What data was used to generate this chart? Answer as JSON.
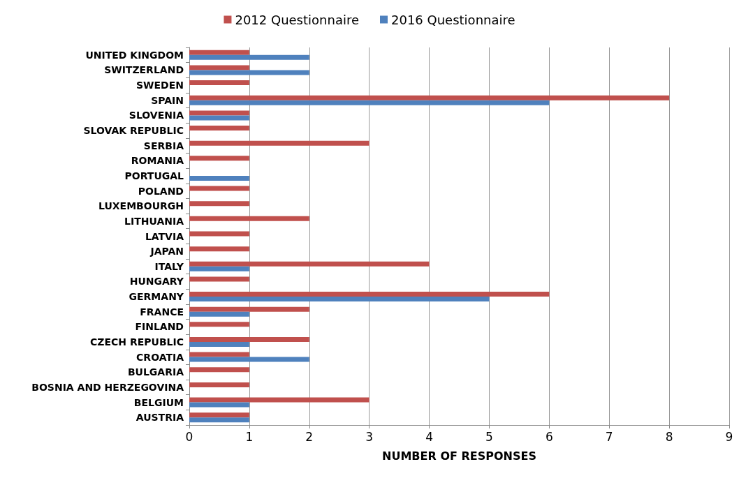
{
  "chart_data": {
    "type": "bar",
    "orientation": "horizontal",
    "xlabel": "NUMBER OF RESPONSES",
    "categories": [
      "UNITED KINGDOM",
      "SWITZERLAND",
      "SWEDEN",
      "SPAIN",
      "SLOVENIA",
      "SLOVAK REPUBLIC",
      "SERBIA",
      "ROMANIA",
      "PORTUGAL",
      "POLAND",
      "LUXEMBOURGH",
      "LITHUANIA",
      "LATVIA",
      "JAPAN",
      "ITALY",
      "HUNGARY",
      "GERMANY",
      "FRANCE",
      "FINLAND",
      "CZECH REPUBLIC",
      "CROATIA",
      "BULGARIA",
      "BOSNIA AND HERZEGOVINA",
      "BELGIUM",
      "AUSTRIA"
    ],
    "series": [
      {
        "name": "2012 Questionnaire",
        "color": "#c0504d",
        "values": [
          1,
          1,
          1,
          8,
          1,
          1,
          3,
          1,
          null,
          1,
          1,
          2,
          1,
          1,
          4,
          1,
          6,
          2,
          1,
          2,
          1,
          1,
          1,
          3,
          1
        ]
      },
      {
        "name": "2016 Questionnaire",
        "color": "#4f81bd",
        "values": [
          2,
          2,
          null,
          6,
          1,
          null,
          null,
          null,
          1,
          null,
          null,
          null,
          null,
          null,
          1,
          null,
          5,
          1,
          null,
          1,
          2,
          null,
          null,
          1,
          1
        ]
      }
    ],
    "xlim": [
      0,
      9
    ],
    "xticks": [
      0,
      1,
      2,
      3,
      4,
      5,
      6,
      7,
      8,
      9
    ],
    "grid": "x",
    "legend": "top"
  }
}
